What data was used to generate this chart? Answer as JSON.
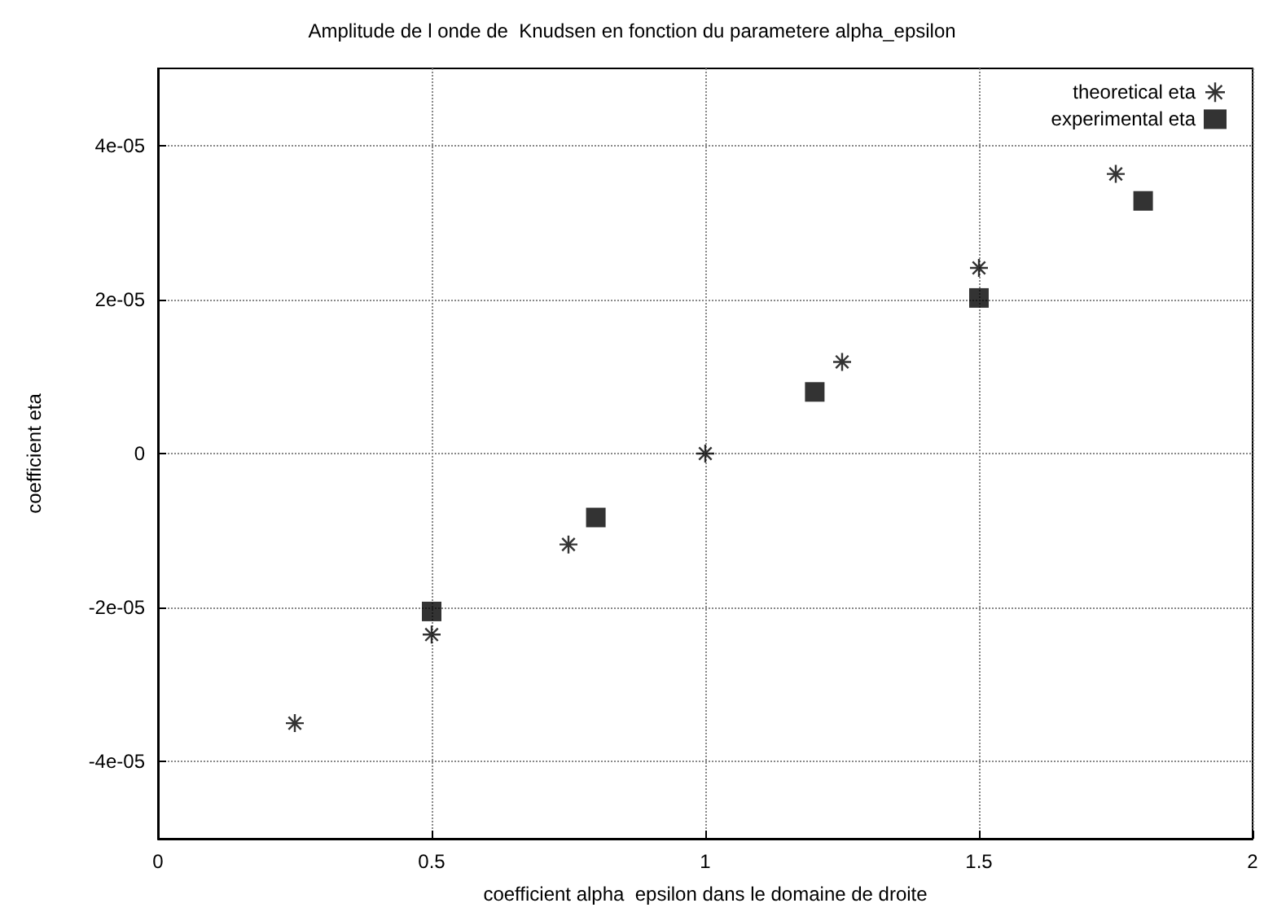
{
  "chart_data": {
    "type": "scatter",
    "title": "Amplitude de l onde de  Knudsen en fonction du parametere alpha_epsilon",
    "xlabel": "coefficient alpha  epsilon dans le domaine de droite",
    "ylabel": "coefficient eta",
    "series": [
      {
        "name": "theoretical eta",
        "color": "#000000",
        "marker": "cross",
        "x": [
          0.25,
          0.5,
          0.75,
          1.0,
          1.25,
          1.5,
          1.75
        ],
        "values": [
          -3.5e-05,
          -2.35e-05,
          -1.18e-05,
          0,
          1.19e-05,
          2.41e-05,
          3.63e-05
        ]
      },
      {
        "name": "experimental eta",
        "color": "#000000",
        "marker": "square",
        "x": [
          0.5,
          0.8,
          1.2,
          1.5,
          1.8
        ],
        "values": [
          -2.05e-05,
          -8.3e-06,
          8e-06,
          2.02e-05,
          3.28e-05
        ]
      }
    ],
    "xlim": [
      0,
      2
    ],
    "xticks": [
      0,
      0.5,
      1,
      1.5,
      2
    ],
    "ylim": [
      -5e-05,
      5e-05
    ],
    "yticks": [
      {
        "value": -4e-05,
        "label": "-4e-05"
      },
      {
        "value": -2e-05,
        "label": "-2e-05"
      },
      0,
      {
        "value": 2e-05,
        "label": "2e-05"
      },
      {
        "value": 4e-05,
        "label": "4e-05"
      }
    ],
    "grid": true,
    "legend": "top right"
  }
}
